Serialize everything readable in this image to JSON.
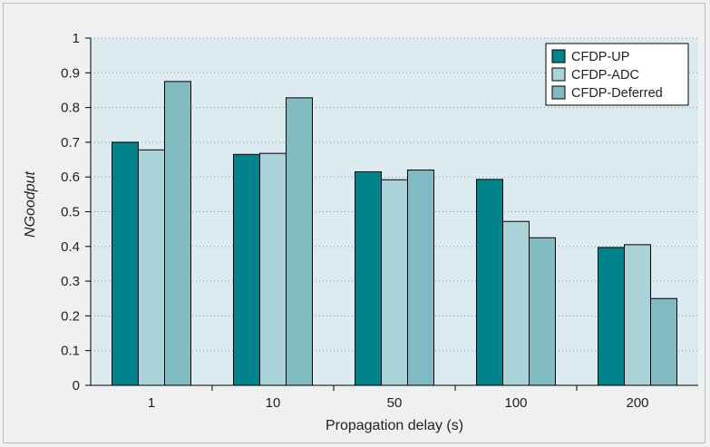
{
  "chart_data": {
    "type": "bar",
    "categories": [
      "1",
      "10",
      "50",
      "100",
      "200"
    ],
    "series": [
      {
        "name": "CFDP-UP",
        "color": "#00838a",
        "values": [
          0.7,
          0.665,
          0.615,
          0.593,
          0.397
        ]
      },
      {
        "name": "CFDP-ADC",
        "color": "#a9d3d8",
        "values": [
          0.678,
          0.668,
          0.592,
          0.472,
          0.405
        ]
      },
      {
        "name": "CFDP-Deferred",
        "color": "#80bbc2",
        "values": [
          0.875,
          0.828,
          0.62,
          0.425,
          0.25
        ]
      }
    ],
    "title": "",
    "xlabel": "Propagation delay (s)",
    "ylabel": "NGoodput",
    "ylim": [
      0,
      1
    ],
    "yticks": [
      "0",
      "0.1",
      "0.2",
      "0.3",
      "0.4",
      "0.5",
      "0.6",
      "0.7",
      "0.8",
      "0.9",
      "1"
    ],
    "grid": "horizontal dotted",
    "legend_position": "top-right",
    "plot_background": "#dcebef"
  }
}
